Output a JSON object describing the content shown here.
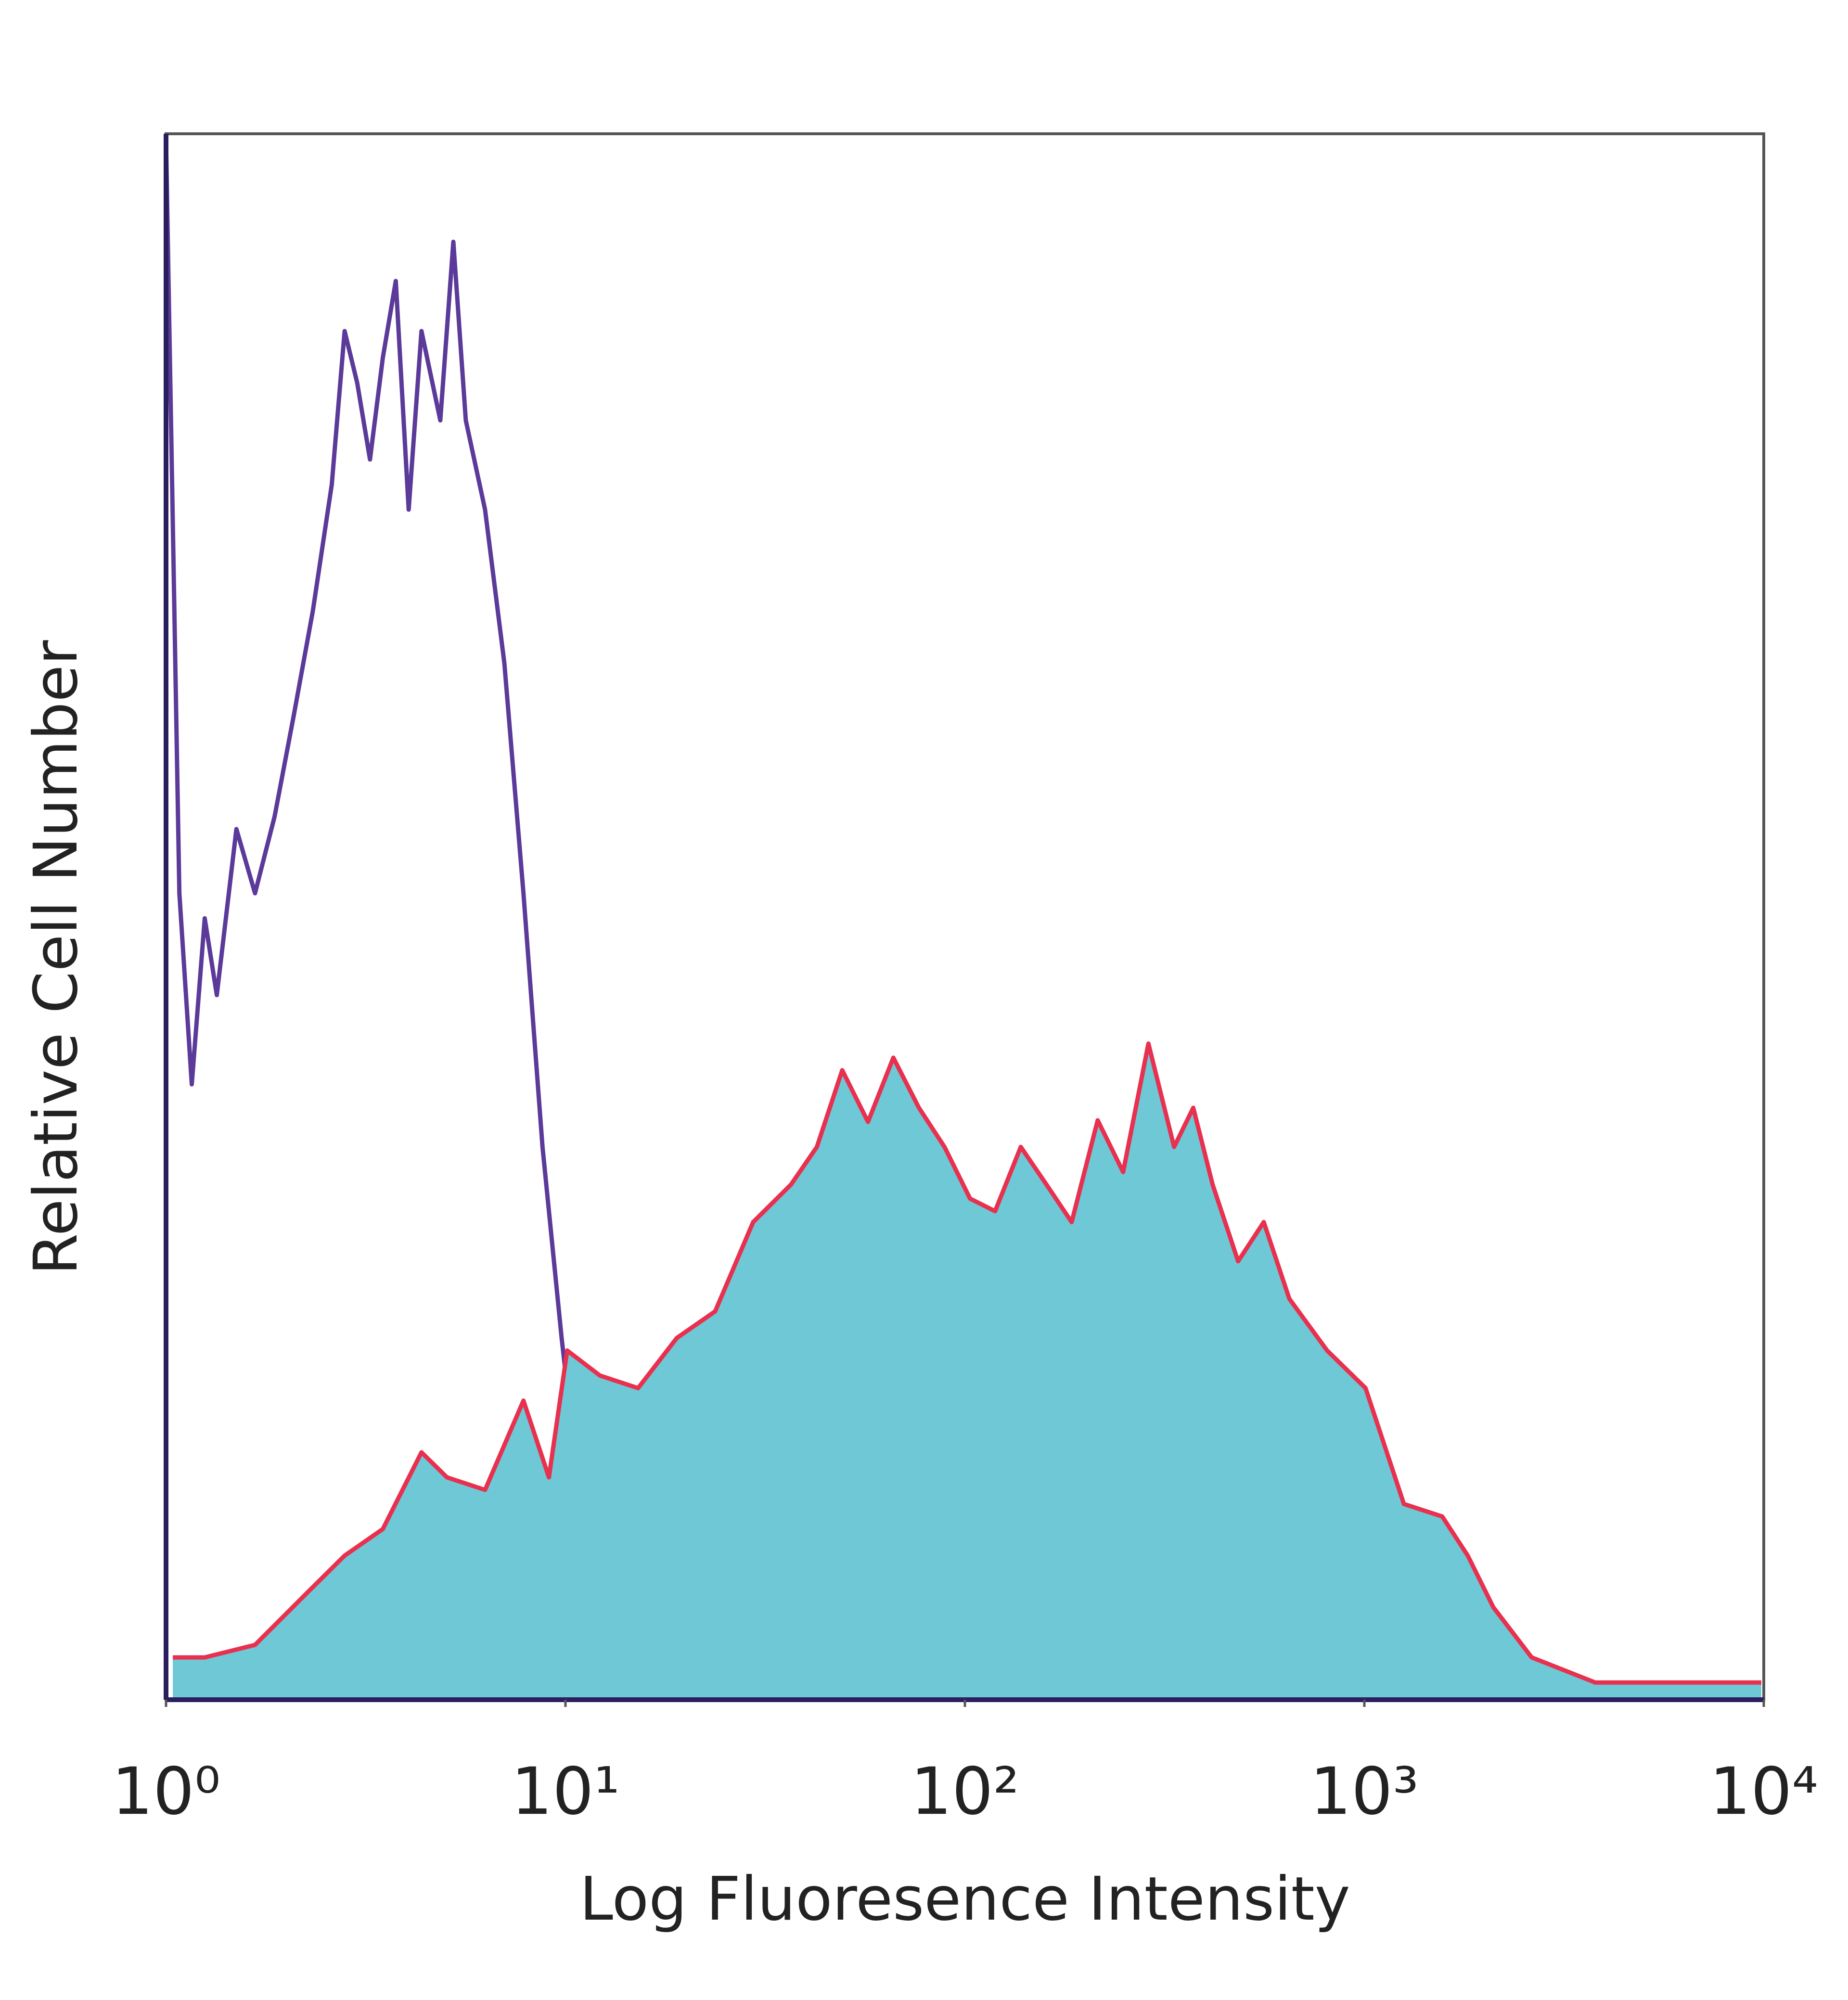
{
  "chart_data": {
    "type": "histogram-line",
    "xscale": "log",
    "xlabel": "Log Fluoresence Intensity",
    "ylabel": "Relative Cell Number",
    "xlim": [
      1,
      10000
    ],
    "ylim": [
      0,
      100
    ],
    "xticks": [
      {
        "value": 1,
        "label": "10⁰"
      },
      {
        "value": 10,
        "label": "10¹"
      },
      {
        "value": 100,
        "label": "10²"
      },
      {
        "value": 1000,
        "label": "10³"
      },
      {
        "value": 10000,
        "label": "10⁴"
      }
    ],
    "series": [
      {
        "color": "#5b3a9a",
        "fill": null,
        "x": [
          1,
          1.08,
          1.16,
          1.25,
          1.34,
          1.5,
          1.67,
          1.87,
          2.09,
          2.33,
          2.6,
          2.8,
          3.01,
          3.24,
          3.49,
          3.76,
          4.05,
          4.36,
          4.86,
          5.24,
          5.63,
          6.29,
          7.03,
          7.85,
          8.76,
          9.78,
          10.9,
          12.2,
          14.1,
          16.4,
          31.8,
          10000
        ],
        "values": [
          99.6,
          51.5,
          39.3,
          49.9,
          45.0,
          55.6,
          51.5,
          56.4,
          62.9,
          69.5,
          77.6,
          87.4,
          84.1,
          79.2,
          85.7,
          90.6,
          76.0,
          87.4,
          81.7,
          93.1,
          81.7,
          76.0,
          66.2,
          51.5,
          35.3,
          23.1,
          12.5,
          6.8,
          2.7,
          0.2,
          0,
          0
        ]
      },
      {
        "color": "#e8304f",
        "fill": "#6fc8d6",
        "x": [
          1.04,
          1.25,
          1.67,
          2.25,
          2.8,
          3.49,
          4.36,
          5.05,
          6.29,
          7.85,
          9.09,
          10.1,
          12.2,
          15.2,
          19.0,
          23.7,
          29.5,
          36.7,
          42.6,
          49.3,
          57.2,
          66.2,
          76.7,
          88.9,
          103,
          119,
          138,
          160,
          185,
          215,
          249,
          288,
          334,
          373,
          417,
          483,
          560,
          649,
          807,
          1007,
          1256,
          1567,
          1815,
          2104,
          2624,
          3784,
          5470,
          9860
        ],
        "values": [
          2.7,
          2.7,
          3.5,
          6.8,
          9.2,
          10.9,
          15.8,
          14.2,
          13.4,
          19.1,
          14.2,
          22.3,
          20.7,
          19.9,
          23.1,
          24.8,
          30.5,
          32.9,
          35.3,
          40.2,
          36.9,
          41.0,
          37.8,
          35.3,
          32.0,
          31.2,
          35.3,
          32.9,
          30.5,
          37.0,
          33.7,
          41.9,
          35.3,
          37.8,
          32.9,
          28.0,
          30.5,
          25.6,
          22.3,
          19.9,
          12.5,
          11.7,
          9.2,
          5.9,
          2.7,
          1.1,
          1.1,
          1.1
        ]
      }
    ]
  }
}
